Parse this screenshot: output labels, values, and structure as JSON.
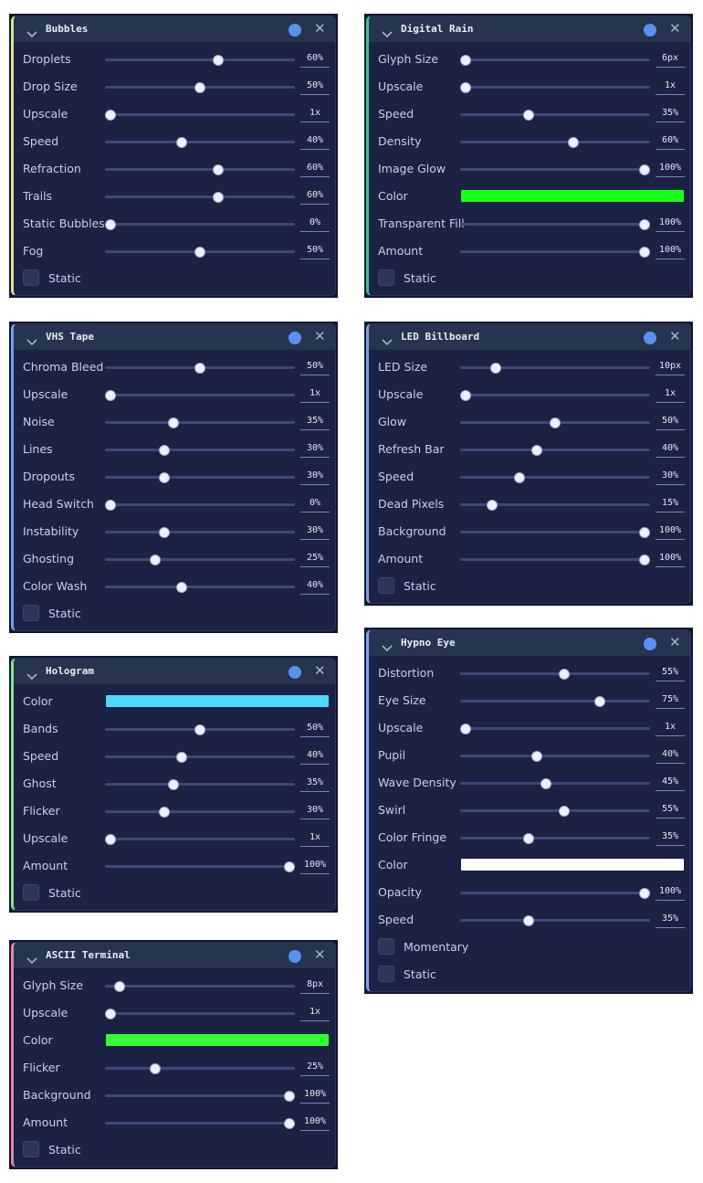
{
  "columns": [
    [
      {
        "title": "Bubbles",
        "accent": "#d8e48a",
        "controls": [
          {
            "type": "slider",
            "label": "Droplets",
            "position": 60,
            "readout": "60%"
          },
          {
            "type": "slider",
            "label": "Drop Size",
            "position": 50,
            "readout": "50%"
          },
          {
            "type": "slider",
            "label": "Upscale",
            "position": 0,
            "readout": "1x"
          },
          {
            "type": "slider",
            "label": "Speed",
            "position": 40,
            "readout": "40%"
          },
          {
            "type": "slider",
            "label": "Refraction",
            "position": 60,
            "readout": "60%"
          },
          {
            "type": "slider",
            "label": "Trails",
            "position": 60,
            "readout": "60%"
          },
          {
            "type": "slider",
            "label": "Static Bubbles",
            "position": 0,
            "readout": "0%"
          },
          {
            "type": "slider",
            "label": "Fog",
            "position": 50,
            "readout": "50%"
          },
          {
            "type": "checkbox",
            "label": "Static"
          }
        ]
      },
      {
        "title": "VHS Tape",
        "accent": "#6fa4e6",
        "controls": [
          {
            "type": "slider",
            "label": "Chroma Bleed",
            "position": 50,
            "readout": "50%"
          },
          {
            "type": "slider",
            "label": "Upscale",
            "position": 0,
            "readout": "1x"
          },
          {
            "type": "slider",
            "label": "Noise",
            "position": 35,
            "readout": "35%"
          },
          {
            "type": "slider",
            "label": "Lines",
            "position": 30,
            "readout": "30%"
          },
          {
            "type": "slider",
            "label": "Dropouts",
            "position": 30,
            "readout": "30%"
          },
          {
            "type": "slider",
            "label": "Head Switch",
            "position": 0,
            "readout": "0%"
          },
          {
            "type": "slider",
            "label": "Instability",
            "position": 30,
            "readout": "30%"
          },
          {
            "type": "slider",
            "label": "Ghosting",
            "position": 25,
            "readout": "25%"
          },
          {
            "type": "slider",
            "label": "Color Wash",
            "position": 40,
            "readout": "40%"
          },
          {
            "type": "checkbox",
            "label": "Static"
          }
        ]
      },
      {
        "title": "Hologram",
        "accent": "#86e28a",
        "controls": [
          {
            "type": "color",
            "label": "Color",
            "color": "#4dd8ff"
          },
          {
            "type": "slider",
            "label": "Bands",
            "position": 50,
            "readout": "50%"
          },
          {
            "type": "slider",
            "label": "Speed",
            "position": 40,
            "readout": "40%"
          },
          {
            "type": "slider",
            "label": "Ghost",
            "position": 35,
            "readout": "35%"
          },
          {
            "type": "slider",
            "label": "Flicker",
            "position": 30,
            "readout": "30%"
          },
          {
            "type": "slider",
            "label": "Upscale",
            "position": 0,
            "readout": "1x"
          },
          {
            "type": "slider",
            "label": "Amount",
            "position": 100,
            "readout": "100%"
          },
          {
            "type": "checkbox",
            "label": "Static"
          }
        ]
      },
      {
        "title": "ASCII Terminal",
        "accent": "#e884a8",
        "controls": [
          {
            "type": "slider",
            "label": "Glyph Size",
            "position": 5,
            "readout": "8px"
          },
          {
            "type": "slider",
            "label": "Upscale",
            "position": 0,
            "readout": "1x"
          },
          {
            "type": "color",
            "label": "Color",
            "color": "#33ff33"
          },
          {
            "type": "slider",
            "label": "Flicker",
            "position": 25,
            "readout": "25%"
          },
          {
            "type": "slider",
            "label": "Background",
            "position": 100,
            "readout": "100%"
          },
          {
            "type": "slider",
            "label": "Amount",
            "position": 100,
            "readout": "100%"
          },
          {
            "type": "checkbox",
            "label": "Static"
          }
        ]
      }
    ],
    [
      {
        "title": "Digital Rain",
        "accent": "#3fc486",
        "controls": [
          {
            "type": "slider",
            "label": "Glyph Size",
            "position": 0,
            "readout": "6px"
          },
          {
            "type": "slider",
            "label": "Upscale",
            "position": 0,
            "readout": "1x"
          },
          {
            "type": "slider",
            "label": "Speed",
            "position": 35,
            "readout": "35%"
          },
          {
            "type": "slider",
            "label": "Density",
            "position": 60,
            "readout": "60%"
          },
          {
            "type": "slider",
            "label": "Image Glow",
            "position": 100,
            "readout": "100%"
          },
          {
            "type": "color",
            "label": "Color",
            "color": "#1aff1a"
          },
          {
            "type": "slider",
            "label": "Transparent Fill",
            "position": 100,
            "readout": "100%"
          },
          {
            "type": "slider",
            "label": "Amount",
            "position": 100,
            "readout": "100%"
          },
          {
            "type": "checkbox",
            "label": "Static"
          }
        ]
      },
      {
        "title": "LED Billboard",
        "accent": "#7aa2e4",
        "controls": [
          {
            "type": "slider",
            "label": "LED Size",
            "position": 17,
            "readout": "10px"
          },
          {
            "type": "slider",
            "label": "Upscale",
            "position": 0,
            "readout": "1x"
          },
          {
            "type": "slider",
            "label": "Glow",
            "position": 50,
            "readout": "50%"
          },
          {
            "type": "slider",
            "label": "Refresh Bar",
            "position": 40,
            "readout": "40%"
          },
          {
            "type": "slider",
            "label": "Speed",
            "position": 30,
            "readout": "30%"
          },
          {
            "type": "slider",
            "label": "Dead Pixels",
            "position": 15,
            "readout": "15%"
          },
          {
            "type": "slider",
            "label": "Background",
            "position": 100,
            "readout": "100%"
          },
          {
            "type": "slider",
            "label": "Amount",
            "position": 100,
            "readout": "100%"
          },
          {
            "type": "checkbox",
            "label": "Static"
          }
        ]
      },
      {
        "title": "Hypno Eye",
        "accent": "#7fa6f2",
        "controls": [
          {
            "type": "slider",
            "label": "Distortion",
            "position": 55,
            "readout": "55%"
          },
          {
            "type": "slider",
            "label": "Eye Size",
            "position": 75,
            "readout": "75%"
          },
          {
            "type": "slider",
            "label": "Upscale",
            "position": 0,
            "readout": "1x"
          },
          {
            "type": "slider",
            "label": "Pupil",
            "position": 40,
            "readout": "40%"
          },
          {
            "type": "slider",
            "label": "Wave Density",
            "position": 45,
            "readout": "45%"
          },
          {
            "type": "slider",
            "label": "Swirl",
            "position": 55,
            "readout": "55%"
          },
          {
            "type": "slider",
            "label": "Color Fringe",
            "position": 35,
            "readout": "35%"
          },
          {
            "type": "color",
            "label": "Color",
            "color": "#ffffff"
          },
          {
            "type": "slider",
            "label": "Opacity",
            "position": 100,
            "readout": "100%"
          },
          {
            "type": "slider",
            "label": "Speed",
            "position": 35,
            "readout": "35%"
          },
          {
            "type": "checkbox",
            "label": "Momentary"
          },
          {
            "type": "checkbox",
            "label": "Static"
          }
        ]
      }
    ]
  ]
}
